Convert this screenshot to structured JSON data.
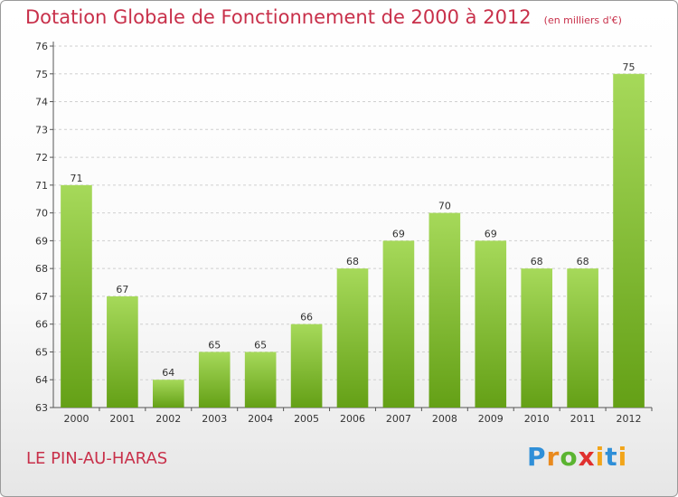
{
  "title": "Dotation Globale de Fonctionnement de 2000 à 2012",
  "subtitle": "(en milliers d'€)",
  "commune": "LE PIN-AU-HARAS",
  "logo": "Proxiti",
  "colors": {
    "title": "#c8304a",
    "bar_light": "#a6d95a",
    "bar_dark": "#64a016"
  },
  "chart_data": {
    "type": "bar",
    "categories": [
      "2000",
      "2001",
      "2002",
      "2003",
      "2004",
      "2005",
      "2006",
      "2007",
      "2008",
      "2009",
      "2010",
      "2011",
      "2012"
    ],
    "values": [
      71,
      67,
      64,
      65,
      65,
      66,
      68,
      69,
      70,
      69,
      68,
      68,
      75
    ],
    "value_labels": [
      "71",
      "67",
      "64",
      "65",
      "65",
      "66",
      "68",
      "69",
      "70",
      "69",
      "68",
      "68",
      "75"
    ],
    "y_ticks": [
      "63",
      "64",
      "65",
      "66",
      "67",
      "68",
      "69",
      "70",
      "71",
      "72",
      "73",
      "74",
      "75",
      "76"
    ],
    "ylim": [
      63,
      76
    ],
    "grid": true,
    "legend": "none"
  }
}
